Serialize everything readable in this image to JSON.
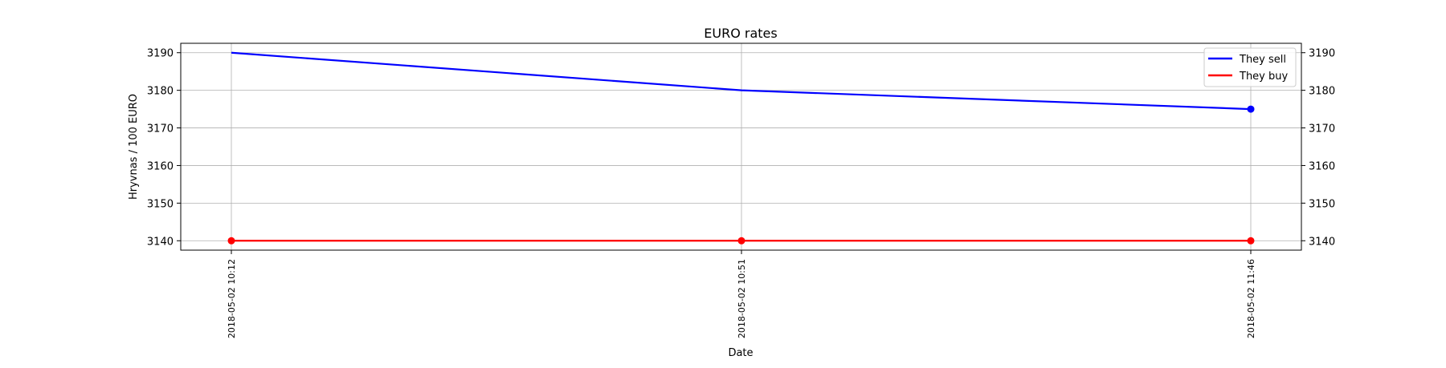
{
  "chart_data": {
    "type": "line",
    "title": "EURO rates",
    "xlabel": "Date",
    "ylabel": "Hryvnas / 100 EURO",
    "x": [
      "2018-05-02 10:12",
      "2018-05-02 10:51",
      "2018-05-02 11:46"
    ],
    "series": [
      {
        "name": "They sell",
        "values": [
          3190,
          3180,
          3175
        ],
        "color": "#0000ff",
        "markers": [
          false,
          false,
          true
        ]
      },
      {
        "name": "They buy",
        "values": [
          3140,
          3140,
          3140
        ],
        "color": "#ff0000",
        "markers": [
          true,
          true,
          true
        ]
      }
    ],
    "ylim": [
      3137.5,
      3192.5
    ],
    "yticks": [
      3140,
      3150,
      3160,
      3170,
      3180,
      3190
    ],
    "secondary_y_axis": true,
    "grid": true,
    "legend_position": "top-right"
  }
}
